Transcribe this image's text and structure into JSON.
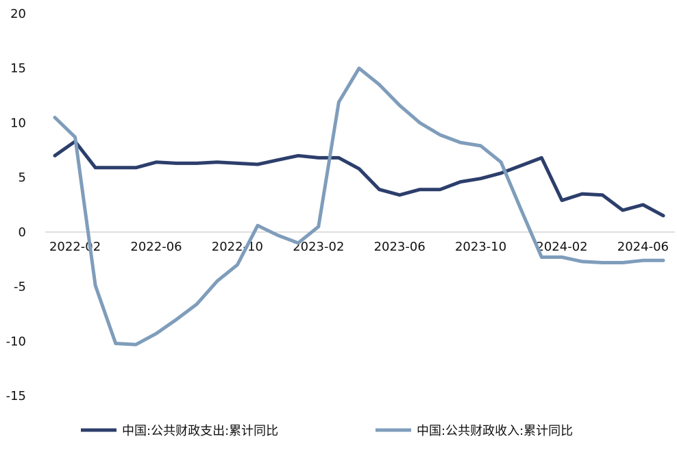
{
  "chart_data": {
    "type": "line",
    "title": "",
    "xlabel": "",
    "ylabel": "",
    "ylim": [
      -15,
      20
    ],
    "yticks": [
      20,
      15,
      10,
      5,
      0,
      -5,
      -10,
      -15
    ],
    "x": [
      "2022-01",
      "2022-02",
      "2022-03",
      "2022-04",
      "2022-05",
      "2022-06",
      "2022-07",
      "2022-08",
      "2022-09",
      "2022-10",
      "2022-11",
      "2022-12",
      "2023-01",
      "2023-02",
      "2023-03",
      "2023-04",
      "2023-05",
      "2023-06",
      "2023-07",
      "2023-08",
      "2023-09",
      "2023-10",
      "2023-11",
      "2023-12",
      "2024-01",
      "2024-02",
      "2024-03",
      "2024-04",
      "2024-05",
      "2024-06",
      "2024-07",
      "2024-08",
      "2024-09"
    ],
    "xtick_labels": [
      "2022-02",
      "2022-06",
      "2022-10",
      "2023-02",
      "2023-06",
      "2023-10",
      "2024-02",
      "2024-06"
    ],
    "grid": false,
    "legend_position": "bottom",
    "series": [
      {
        "name": "中国:公共财政支出:累计同比",
        "color": "#2c3e6b",
        "values": [
          7.0,
          8.3,
          5.9,
          5.9,
          5.9,
          6.4,
          6.3,
          6.3,
          6.4,
          6.3,
          6.2,
          6.6,
          7.0,
          6.8,
          6.8,
          5.8,
          3.9,
          3.4,
          3.9,
          3.9,
          4.6,
          4.9,
          5.4,
          6.1,
          6.8,
          2.9,
          3.5,
          3.4,
          2.0,
          2.5,
          1.5,
          null,
          null
        ]
      },
      {
        "name": "中国:公共财政收入:累计同比",
        "color": "#7f9dbb",
        "values": [
          10.5,
          8.7,
          -4.9,
          -10.2,
          -10.3,
          -9.3,
          -8.0,
          -6.6,
          -4.5,
          -3.0,
          0.6,
          -0.3,
          -1.0,
          0.5,
          11.9,
          15.0,
          13.5,
          11.6,
          10.0,
          8.9,
          8.2,
          7.9,
          6.4,
          2.0,
          -2.3,
          -2.3,
          -2.7,
          -2.8,
          -2.8,
          -2.6,
          -2.6,
          null,
          null
        ]
      }
    ]
  }
}
